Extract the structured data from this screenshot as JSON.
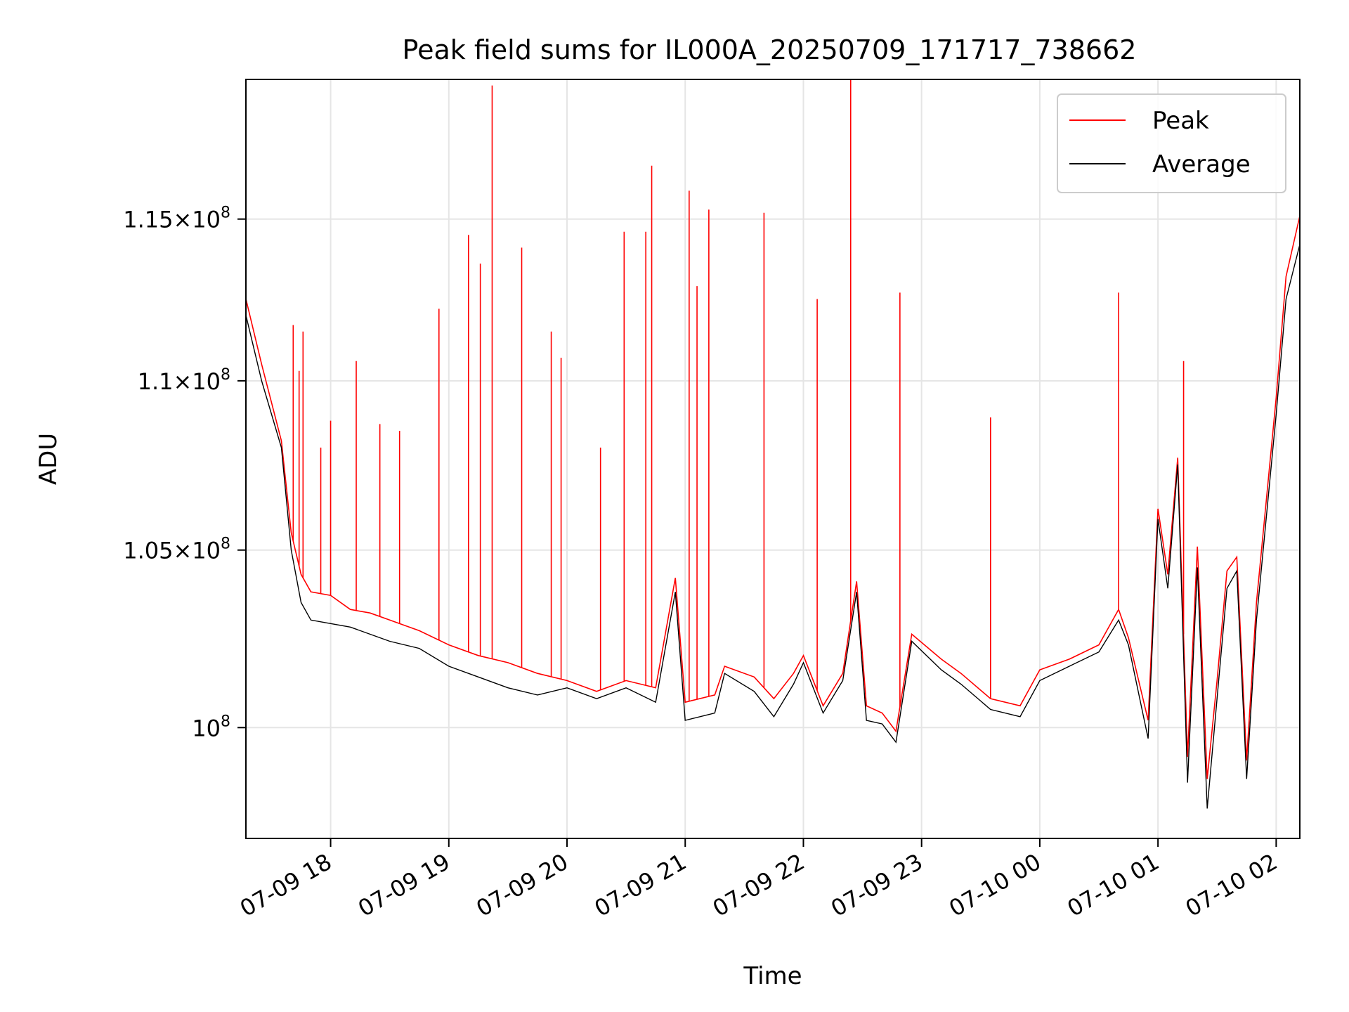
{
  "chart_data": {
    "type": "line",
    "title": "Peak field sums for IL000A_20250709_171717_738662",
    "xlabel": "Time",
    "ylabel": "ADU",
    "y_scale": "log",
    "grid": true,
    "legend_position": "top-right",
    "xlim": [
      "2025-07-09 17:17",
      "2025-07-10 02:12"
    ],
    "ylim": [
      97000000,
      119500000
    ],
    "x_ticks": [
      {
        "value": "2025-07-09 18:00",
        "label": "07-09 18"
      },
      {
        "value": "2025-07-09 19:00",
        "label": "07-09 19"
      },
      {
        "value": "2025-07-09 20:00",
        "label": "07-09 20"
      },
      {
        "value": "2025-07-09 21:00",
        "label": "07-09 21"
      },
      {
        "value": "2025-07-09 22:00",
        "label": "07-09 22"
      },
      {
        "value": "2025-07-09 23:00",
        "label": "07-09 23"
      },
      {
        "value": "2025-07-10 00:00",
        "label": "07-10 00"
      },
      {
        "value": "2025-07-10 01:00",
        "label": "07-10 01"
      },
      {
        "value": "2025-07-10 02:00",
        "label": "07-10 02"
      }
    ],
    "y_ticks": [
      {
        "value": 100000000,
        "mantissa": "",
        "exponent": "8"
      },
      {
        "value": 105000000,
        "mantissa": "1.05",
        "exponent": "8"
      },
      {
        "value": 110000000,
        "mantissa": "1.1",
        "exponent": "8"
      },
      {
        "value": 115000000,
        "mantissa": "1.15",
        "exponent": "8"
      }
    ],
    "series": [
      {
        "name": "Peak",
        "color": "#ff0000",
        "x": [
          "2025-07-09 17:17",
          "2025-07-09 17:25",
          "2025-07-09 17:35",
          "2025-07-09 17:40",
          "2025-07-09 17:45",
          "2025-07-09 17:50",
          "2025-07-09 18:00",
          "2025-07-09 18:10",
          "2025-07-09 18:20",
          "2025-07-09 18:30",
          "2025-07-09 18:45",
          "2025-07-09 19:00",
          "2025-07-09 19:15",
          "2025-07-09 19:30",
          "2025-07-09 19:45",
          "2025-07-09 20:00",
          "2025-07-09 20:15",
          "2025-07-09 20:30",
          "2025-07-09 20:45",
          "2025-07-09 20:55",
          "2025-07-09 21:00",
          "2025-07-09 21:15",
          "2025-07-09 21:20",
          "2025-07-09 21:35",
          "2025-07-09 21:45",
          "2025-07-09 21:55",
          "2025-07-09 22:00",
          "2025-07-09 22:10",
          "2025-07-09 22:20",
          "2025-07-09 22:27",
          "2025-07-09 22:32",
          "2025-07-09 22:40",
          "2025-07-09 22:47",
          "2025-07-09 22:55",
          "2025-07-09 23:10",
          "2025-07-09 23:20",
          "2025-07-09 23:35",
          "2025-07-09 23:50",
          "2025-07-10 00:00",
          "2025-07-10 00:15",
          "2025-07-10 00:30",
          "2025-07-10 00:40",
          "2025-07-10 00:45",
          "2025-07-10 00:55",
          "2025-07-10 01:00",
          "2025-07-10 01:05",
          "2025-07-10 01:10",
          "2025-07-10 01:15",
          "2025-07-10 01:20",
          "2025-07-10 01:25",
          "2025-07-10 01:30",
          "2025-07-10 01:35",
          "2025-07-10 01:40",
          "2025-07-10 01:45",
          "2025-07-10 01:50",
          "2025-07-10 02:00",
          "2025-07-10 02:05",
          "2025-07-10 02:12"
        ],
        "y": [
          112500000,
          110500000,
          108200000,
          105500000,
          104300000,
          103800000,
          103700000,
          103300000,
          103200000,
          103000000,
          102700000,
          102300000,
          102000000,
          101800000,
          101500000,
          101300000,
          101000000,
          101300000,
          101100000,
          104200000,
          100700000,
          100900000,
          101700000,
          101400000,
          100800000,
          101500000,
          102000000,
          100600000,
          101500000,
          104100000,
          100600000,
          100400000,
          99900000,
          102600000,
          101900000,
          101500000,
          100800000,
          100600000,
          101600000,
          101900000,
          102300000,
          103300000,
          102500000,
          100200000,
          106200000,
          104300000,
          107700000,
          99200000,
          105100000,
          98600000,
          101300000,
          104400000,
          104800000,
          99100000,
          103500000,
          109500000,
          113200000,
          115100000
        ],
        "spikes": [
          {
            "x": "2025-07-09 17:41",
            "y": 111700000
          },
          {
            "x": "2025-07-09 17:44",
            "y": 110300000
          },
          {
            "x": "2025-07-09 17:46",
            "y": 111500000
          },
          {
            "x": "2025-07-09 17:55",
            "y": 108000000
          },
          {
            "x": "2025-07-09 18:00",
            "y": 108800000
          },
          {
            "x": "2025-07-09 18:13",
            "y": 110600000
          },
          {
            "x": "2025-07-09 18:25",
            "y": 108700000
          },
          {
            "x": "2025-07-09 18:35",
            "y": 108500000
          },
          {
            "x": "2025-07-09 18:55",
            "y": 112200000
          },
          {
            "x": "2025-07-09 19:10",
            "y": 114500000
          },
          {
            "x": "2025-07-09 19:16",
            "y": 113600000
          },
          {
            "x": "2025-07-09 19:22",
            "y": 119300000
          },
          {
            "x": "2025-07-09 19:37",
            "y": 114100000
          },
          {
            "x": "2025-07-09 19:52",
            "y": 111500000
          },
          {
            "x": "2025-07-09 19:57",
            "y": 110700000
          },
          {
            "x": "2025-07-09 20:17",
            "y": 108000000
          },
          {
            "x": "2025-07-09 20:29",
            "y": 114600000
          },
          {
            "x": "2025-07-09 20:40",
            "y": 114600000
          },
          {
            "x": "2025-07-09 20:43",
            "y": 116700000
          },
          {
            "x": "2025-07-09 21:02",
            "y": 115900000
          },
          {
            "x": "2025-07-09 21:06",
            "y": 112900000
          },
          {
            "x": "2025-07-09 21:12",
            "y": 115300000
          },
          {
            "x": "2025-07-09 21:40",
            "y": 115200000
          },
          {
            "x": "2025-07-09 22:07",
            "y": 112500000
          },
          {
            "x": "2025-07-09 22:24",
            "y": 119500000
          },
          {
            "x": "2025-07-09 22:49",
            "y": 112700000
          },
          {
            "x": "2025-07-09 23:35",
            "y": 108900000
          },
          {
            "x": "2025-07-10 00:40",
            "y": 112700000
          },
          {
            "x": "2025-07-10 01:13",
            "y": 110600000
          }
        ]
      },
      {
        "name": "Average",
        "color": "#000000",
        "x": [
          "2025-07-09 17:17",
          "2025-07-09 17:25",
          "2025-07-09 17:35",
          "2025-07-09 17:40",
          "2025-07-09 17:45",
          "2025-07-09 17:50",
          "2025-07-09 18:00",
          "2025-07-09 18:10",
          "2025-07-09 18:20",
          "2025-07-09 18:30",
          "2025-07-09 18:45",
          "2025-07-09 19:00",
          "2025-07-09 19:15",
          "2025-07-09 19:30",
          "2025-07-09 19:45",
          "2025-07-09 20:00",
          "2025-07-09 20:15",
          "2025-07-09 20:30",
          "2025-07-09 20:45",
          "2025-07-09 20:55",
          "2025-07-09 21:00",
          "2025-07-09 21:15",
          "2025-07-09 21:20",
          "2025-07-09 21:35",
          "2025-07-09 21:45",
          "2025-07-09 21:55",
          "2025-07-09 22:00",
          "2025-07-09 22:10",
          "2025-07-09 22:20",
          "2025-07-09 22:27",
          "2025-07-09 22:32",
          "2025-07-09 22:40",
          "2025-07-09 22:47",
          "2025-07-09 22:55",
          "2025-07-09 23:10",
          "2025-07-09 23:20",
          "2025-07-09 23:35",
          "2025-07-09 23:50",
          "2025-07-10 00:00",
          "2025-07-10 00:15",
          "2025-07-10 00:30",
          "2025-07-10 00:40",
          "2025-07-10 00:45",
          "2025-07-10 00:55",
          "2025-07-10 01:00",
          "2025-07-10 01:05",
          "2025-07-10 01:10",
          "2025-07-10 01:15",
          "2025-07-10 01:20",
          "2025-07-10 01:25",
          "2025-07-10 01:30",
          "2025-07-10 01:35",
          "2025-07-10 01:40",
          "2025-07-10 01:45",
          "2025-07-10 01:50",
          "2025-07-10 02:00",
          "2025-07-10 02:05",
          "2025-07-10 02:12"
        ],
        "y": [
          112000000,
          110000000,
          108000000,
          105000000,
          103500000,
          103000000,
          102900000,
          102800000,
          102600000,
          102400000,
          102200000,
          101700000,
          101400000,
          101100000,
          100900000,
          101100000,
          100800000,
          101100000,
          100700000,
          103800000,
          100200000,
          100400000,
          101500000,
          101000000,
          100300000,
          101200000,
          101800000,
          100400000,
          101300000,
          103800000,
          100200000,
          100100000,
          99600000,
          102400000,
          101600000,
          101200000,
          100500000,
          100300000,
          101300000,
          101700000,
          102100000,
          103000000,
          102300000,
          99700000,
          105900000,
          103900000,
          107500000,
          98500000,
          104500000,
          97800000,
          100800000,
          103900000,
          104400000,
          98600000,
          103000000,
          109000000,
          112500000,
          114200000
        ]
      }
    ]
  }
}
